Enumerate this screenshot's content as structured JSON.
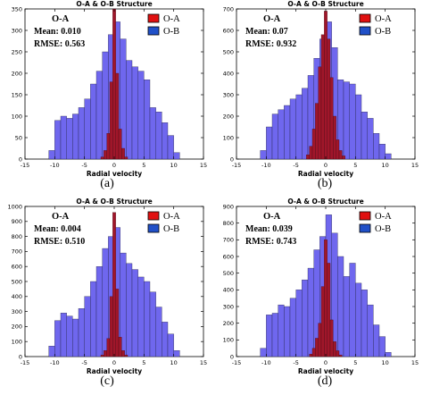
{
  "labels": {
    "series_a": "O-A",
    "series_b": "O-B"
  },
  "colors": {
    "ob_fill": "#6f67ee",
    "ob_stroke": "#202040",
    "oa_fill": "#a0162a",
    "oa_stroke": "#3a0a10",
    "legend_a": "#e01010",
    "legend_b": "#2050c8"
  },
  "chart_data": [
    {
      "type": "bar",
      "panel_label": "(a)",
      "title": "O-A & O-B Structure",
      "xlabel": "Radial velocity",
      "ylabel": "",
      "xlim": [
        -15,
        15
      ],
      "ylim": [
        0,
        350
      ],
      "xticks": [
        -15,
        -10,
        -5,
        0,
        5,
        10,
        15
      ],
      "yticks": [
        0,
        50,
        100,
        150,
        200,
        250,
        300,
        350
      ],
      "stats": {
        "name": "O-A",
        "mean": "Mean: 0.010",
        "rmse": "RMSE: 0.563"
      },
      "ob_bin_start": -11,
      "ob_bin_width": 1,
      "ob_values": [
        20,
        90,
        100,
        95,
        105,
        120,
        140,
        175,
        205,
        250,
        290,
        320,
        280,
        230,
        215,
        205,
        185,
        120,
        110,
        85,
        55,
        15
      ],
      "oa_values": [
        [
          -2.0,
          5
        ],
        [
          -1.5,
          20
        ],
        [
          -1.0,
          60
        ],
        [
          -0.5,
          180
        ],
        [
          0.0,
          350
        ],
        [
          0.5,
          200
        ],
        [
          1.0,
          70
        ],
        [
          1.5,
          25
        ],
        [
          2.0,
          5
        ]
      ]
    },
    {
      "type": "bar",
      "panel_label": "(b)",
      "title": "O-A & O-B Structure",
      "xlabel": "Radial velocity",
      "ylabel": "",
      "xlim": [
        -15,
        15
      ],
      "ylim": [
        0,
        700
      ],
      "xticks": [
        -15,
        -10,
        -5,
        0,
        5,
        10,
        15
      ],
      "yticks": [
        0,
        100,
        200,
        300,
        400,
        500,
        600,
        700
      ],
      "stats": {
        "name": "O-A",
        "mean": "Mean: 0.07",
        "rmse": "RMSE: 0.932"
      },
      "ob_bin_start": -11,
      "ob_bin_width": 1,
      "ob_values": [
        40,
        150,
        210,
        230,
        250,
        280,
        300,
        330,
        390,
        470,
        560,
        640,
        520,
        370,
        360,
        350,
        300,
        220,
        190,
        120,
        70,
        25
      ],
      "oa_values": [
        [
          -3.0,
          20
        ],
        [
          -2.5,
          60
        ],
        [
          -2.0,
          140
        ],
        [
          -1.5,
          260
        ],
        [
          -1.0,
          430
        ],
        [
          -0.5,
          580
        ],
        [
          0.0,
          690
        ],
        [
          0.5,
          560
        ],
        [
          1.0,
          380
        ],
        [
          1.5,
          200
        ],
        [
          2.0,
          90
        ],
        [
          2.5,
          40
        ],
        [
          3.0,
          15
        ]
      ]
    },
    {
      "type": "bar",
      "panel_label": "(c)",
      "title": "O-A & O-B Structure",
      "xlabel": "Radial velocity",
      "ylabel": "",
      "xlim": [
        -15,
        15
      ],
      "ylim": [
        0,
        1000
      ],
      "xticks": [
        -15,
        -10,
        -5,
        0,
        5,
        10,
        15
      ],
      "yticks": [
        0,
        100,
        200,
        300,
        400,
        500,
        600,
        700,
        800,
        900,
        1000
      ],
      "stats": {
        "name": "O-A",
        "mean": "Mean: 0.004",
        "rmse": "RMSE: 0.510"
      },
      "ob_bin_start": -11,
      "ob_bin_width": 1,
      "ob_values": [
        70,
        240,
        290,
        270,
        250,
        320,
        400,
        500,
        600,
        720,
        800,
        860,
        690,
        620,
        580,
        530,
        500,
        430,
        330,
        230,
        150,
        40
      ],
      "oa_values": [
        [
          -2.0,
          10
        ],
        [
          -1.5,
          40
        ],
        [
          -1.0,
          120
        ],
        [
          -0.5,
          400
        ],
        [
          0.0,
          960
        ],
        [
          0.5,
          450
        ],
        [
          1.0,
          130
        ],
        [
          1.5,
          40
        ],
        [
          2.0,
          10
        ]
      ]
    },
    {
      "type": "bar",
      "panel_label": "(d)",
      "title": "O-A & O-B Structure",
      "xlabel": "Radial velocity",
      "ylabel": "",
      "xlim": [
        -15,
        15
      ],
      "ylim": [
        0,
        900
      ],
      "xticks": [
        -15,
        -10,
        -5,
        0,
        5,
        10,
        15
      ],
      "yticks": [
        0,
        100,
        200,
        300,
        400,
        500,
        600,
        700,
        800,
        900
      ],
      "stats": {
        "name": "O-A",
        "mean": "Mean: 0.039",
        "rmse": "RMSE: 0.743"
      },
      "ob_bin_start": -11,
      "ob_bin_width": 1,
      "ob_values": [
        50,
        250,
        260,
        310,
        300,
        350,
        400,
        460,
        530,
        640,
        720,
        850,
        740,
        600,
        480,
        560,
        440,
        400,
        310,
        190,
        120,
        25
      ],
      "oa_values": [
        [
          -2.5,
          15
        ],
        [
          -2.0,
          50
        ],
        [
          -1.5,
          110
        ],
        [
          -1.0,
          200
        ],
        [
          -0.5,
          420
        ],
        [
          0.0,
          700
        ],
        [
          0.5,
          560
        ],
        [
          1.0,
          220
        ],
        [
          1.5,
          90
        ],
        [
          2.0,
          35
        ],
        [
          2.5,
          10
        ]
      ]
    }
  ]
}
